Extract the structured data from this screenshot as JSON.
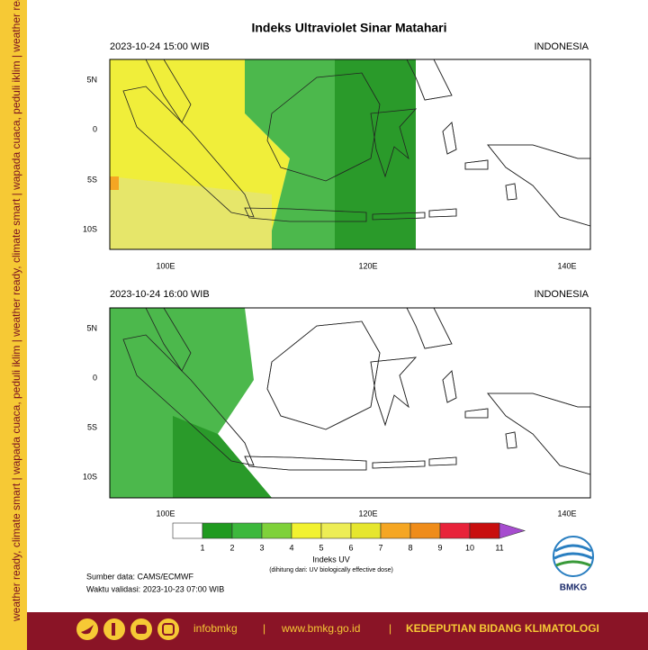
{
  "title": "Indeks Ultraviolet Sinar Matahari",
  "panels": [
    {
      "datetime": "2023-10-24  15:00 WIB",
      "region": "INDONESIA",
      "lat_labels": [
        "5N",
        "0",
        "5S",
        "10S"
      ],
      "lon_labels": [
        "100E",
        "120E",
        "140E"
      ]
    },
    {
      "datetime": "2023-10-24  16:00 WIB",
      "region": "INDONESIA",
      "lat_labels": [
        "5N",
        "0",
        "5S",
        "10S"
      ],
      "lon_labels": [
        "100E",
        "120E",
        "140E"
      ]
    }
  ],
  "colorbar": {
    "colors": [
      "#ffffff",
      "#1f9a1f",
      "#3cb83c",
      "#7fd13a",
      "#f2f230",
      "#eded55",
      "#e6e62e",
      "#f5a623",
      "#ef8c1a",
      "#e8233a",
      "#dd1c1c",
      "#c80e0e"
    ],
    "arrow_color": "#a64ccf",
    "labels": [
      1,
      2,
      3,
      4,
      5,
      6,
      7,
      8,
      9,
      10,
      11
    ],
    "title": "Indeks UV",
    "note": "(dihitung dari: UV biologically effective dose)"
  },
  "source": "Sumber data: CAMS/ECMWF",
  "validity": "Waktu validasi: 2023-10-23 07:00 WIB",
  "logo": "BMKG",
  "sidebar": "weather ready, climate smart  |  wapada cuaca, peduli iklim  |  weather ready, climate smart  |  wapada cuaca, peduli iklim  |  weather ready, climate smart  |  wapada cuaca, peduli iklim",
  "footer": {
    "social": "infobmkg",
    "separator": "|",
    "website": "www.bmkg.go.id",
    "unit": "KEDEPUTIAN BIDANG KLIMATOLOGI"
  }
}
